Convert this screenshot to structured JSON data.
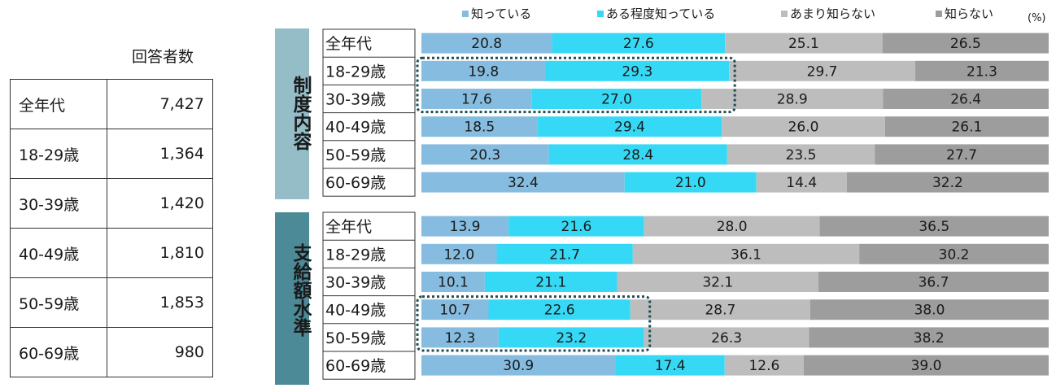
{
  "respondents": {
    "header": "回答者数",
    "rows": [
      {
        "age": "全年代",
        "count": "7,427"
      },
      {
        "age": "18-29歳",
        "count": "1,364"
      },
      {
        "age": "30-39歳",
        "count": "1,420"
      },
      {
        "age": "40-49歳",
        "count": "1,810"
      },
      {
        "age": "50-59歳",
        "count": "1,853"
      },
      {
        "age": "60-69歳",
        "count": "980"
      }
    ]
  },
  "unit": "(%)",
  "chart_data": {
    "type": "bar",
    "orientation": "horizontal",
    "stacked": true,
    "legend_position": "top",
    "series_names": [
      "知っている",
      "ある程度知っている",
      "あまり知らない",
      "知らない"
    ],
    "colors": [
      "#85bcdf",
      "#36d9f5",
      "#bdbdbd",
      "#9d9d9d"
    ],
    "groups": [
      {
        "label": "制度内容",
        "band_color": "#95bdc8",
        "categories": [
          "全年代",
          "18-29歳",
          "30-39歳",
          "40-49歳",
          "50-59歳",
          "60-69歳"
        ],
        "values": [
          [
            20.8,
            27.6,
            25.1,
            26.5
          ],
          [
            19.8,
            29.3,
            29.7,
            21.3
          ],
          [
            17.6,
            27.0,
            28.9,
            26.4
          ],
          [
            18.5,
            29.4,
            26.0,
            26.1
          ],
          [
            20.3,
            28.4,
            23.5,
            27.7
          ],
          [
            32.4,
            21.0,
            14.4,
            32.2
          ]
        ],
        "highlight_rows": [
          1,
          2
        ]
      },
      {
        "label": "支給額水準",
        "band_color": "#4c8a97",
        "categories": [
          "全年代",
          "18-29歳",
          "30-39歳",
          "40-49歳",
          "50-59歳",
          "60-69歳"
        ],
        "values": [
          [
            13.9,
            21.6,
            28.0,
            36.5
          ],
          [
            12.0,
            21.7,
            36.1,
            30.2
          ],
          [
            10.1,
            21.1,
            32.1,
            36.7
          ],
          [
            10.7,
            22.6,
            28.7,
            38.0
          ],
          [
            12.3,
            23.2,
            26.3,
            38.2
          ],
          [
            30.9,
            17.4,
            12.6,
            39.0
          ]
        ],
        "highlight_rows": [
          3,
          4
        ]
      }
    ]
  }
}
